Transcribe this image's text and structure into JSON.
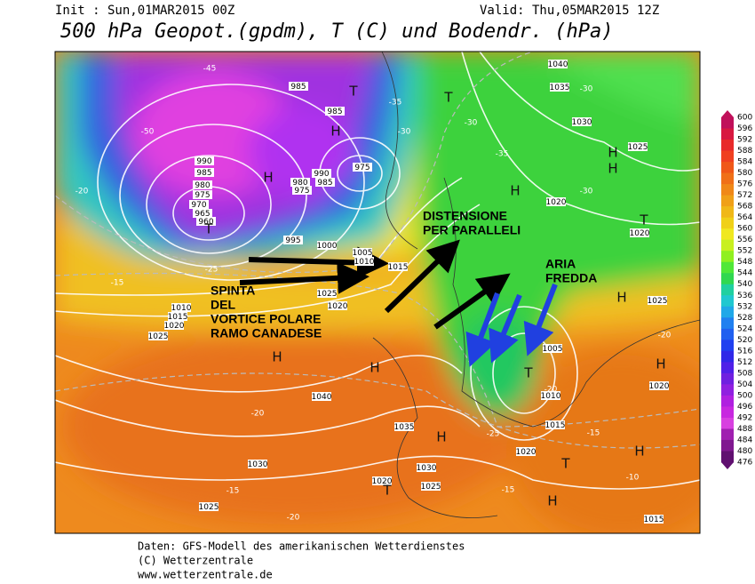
{
  "header": {
    "init": "Init : Sun,01MAR2015 00Z",
    "valid": "Valid: Thu,05MAR2015 12Z",
    "title": "500 hPa Geopot.(gpdm), T (C) und Bodendr. (hPa)"
  },
  "annotations": [
    {
      "lines": [
        "SPINTA",
        "DEL",
        "VORTICE POLARE",
        "RAMO CANADESE"
      ]
    },
    {
      "lines": [
        "DISTENSIONE",
        "PER PARALLELI"
      ]
    },
    {
      "lines": [
        "ARIA",
        "FREDDA"
      ]
    }
  ],
  "map_labels": [
    "1040",
    "1035",
    "-30",
    "1030",
    "1025",
    "H",
    "H",
    "T",
    "1020",
    "1020",
    "-30",
    "H",
    "T",
    "-35",
    "-30",
    "-30",
    "-35",
    "T",
    "985",
    "985",
    "H",
    "975",
    "990",
    "985",
    "980",
    "975",
    "-50",
    "-45",
    "990",
    "985",
    "980",
    "975",
    "970",
    "965",
    "960",
    "T",
    "H",
    "995",
    "1000",
    "1005",
    "1010",
    "1015",
    "1020",
    "1025",
    "H",
    "H",
    "1040",
    "1035",
    "H",
    "1030",
    "1030",
    "1025",
    "1020",
    "T",
    "1025",
    "-20",
    "-15",
    "-20",
    "-25",
    "-20",
    "T",
    "1010",
    "1005",
    "1015",
    "H",
    "H",
    "-20",
    "1020",
    "T",
    "H",
    "1020",
    "H",
    "-15",
    "1015",
    "-15",
    "-10",
    "1025",
    "-25",
    "-15",
    "1025",
    "1020",
    "1015",
    "1010",
    "-20"
  ],
  "colorbar": [
    600,
    596,
    592,
    588,
    584,
    580,
    576,
    572,
    568,
    564,
    560,
    556,
    552,
    548,
    544,
    540,
    536,
    532,
    528,
    524,
    520,
    516,
    512,
    508,
    504,
    500,
    496,
    492,
    488,
    484,
    480,
    476
  ],
  "footer": [
    "Daten: GFS-Modell des amerikanischen Wetterdienstes",
    "(C) Wetterzentrale",
    "www.wetterzentrale.de"
  ]
}
